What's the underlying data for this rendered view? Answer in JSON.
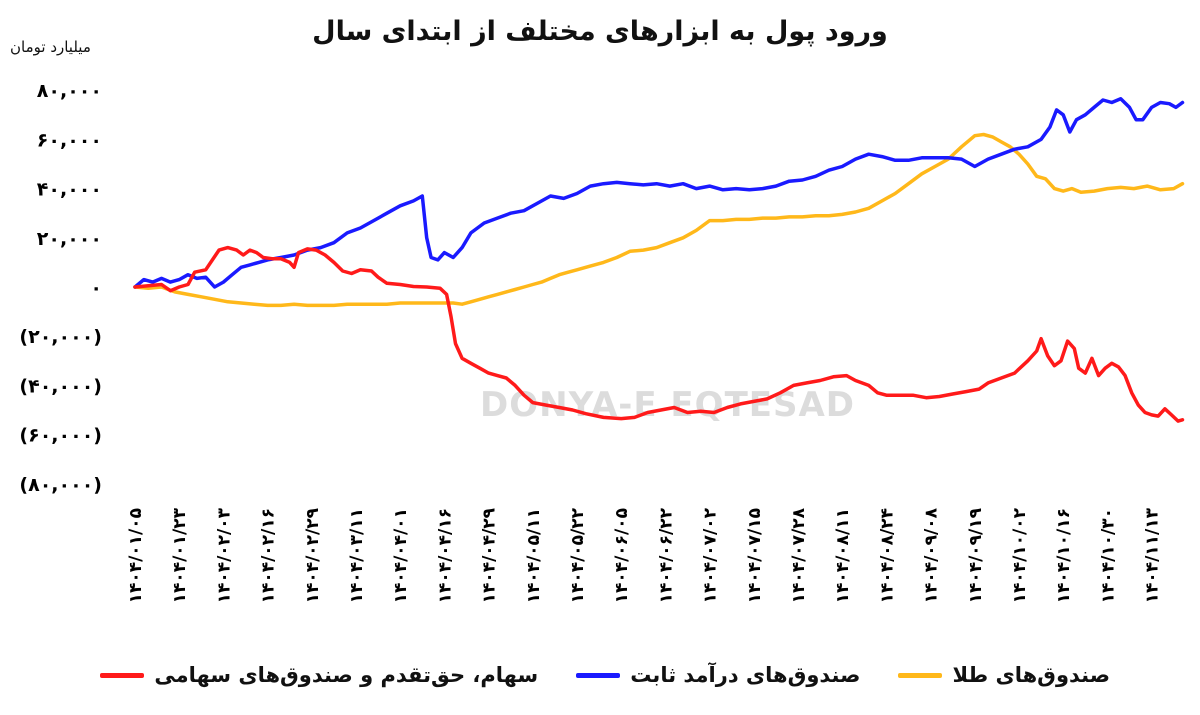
{
  "chart_data": {
    "type": "line",
    "title": "ورود پول به ابزارهای مختلف از ابتدای سال",
    "ylabel": "میلیارد تومان",
    "ylim": [
      -80000,
      80000
    ],
    "y_ticks": [
      {
        "value": 80000,
        "label": "۸۰,۰۰۰"
      },
      {
        "value": 60000,
        "label": "۶۰,۰۰۰"
      },
      {
        "value": 40000,
        "label": "۴۰,۰۰۰"
      },
      {
        "value": 20000,
        "label": "۲۰,۰۰۰"
      },
      {
        "value": 0,
        "label": "۰"
      },
      {
        "value": -20000,
        "label": "(۲۰,۰۰۰)"
      },
      {
        "value": -40000,
        "label": "(۴۰,۰۰۰)"
      },
      {
        "value": -60000,
        "label": "(۶۰,۰۰۰)"
      },
      {
        "value": -80000,
        "label": "(۸۰,۰۰۰)"
      }
    ],
    "categories": [
      "۱۴۰۴/۰۱/۰۵",
      "۱۴۰۴/۰۱/۲۳",
      "۱۴۰۴/۰۲/۰۳",
      "۱۴۰۴/۰۲/۱۶",
      "۱۴۰۴/۰۲/۲۹",
      "۱۴۰۴/۰۳/۱۱",
      "۱۴۰۴/۰۴/۰۱",
      "۱۴۰۴/۰۴/۱۶",
      "۱۴۰۴/۰۴/۲۹",
      "۱۴۰۴/۰۵/۱۱",
      "۱۴۰۴/۰۵/۲۲",
      "۱۴۰۴/۰۶/۰۵",
      "۱۴۰۴/۰۶/۲۲",
      "۱۴۰۴/۰۷/۰۲",
      "۱۴۰۴/۰۷/۱۵",
      "۱۴۰۴/۰۷/۲۸",
      "۱۴۰۴/۰۸/۱۱",
      "۱۴۰۴/۰۸/۲۴",
      "۱۴۰۴/۰۹/۰۸",
      "۱۴۰۴/۰۹/۱۹",
      "۱۴۰۴/۱۰/۰۲",
      "۱۴۰۴/۱۰/۱۶",
      "۱۴۰۴/۱۰/۳۰",
      "۱۴۰۴/۱۱/۱۳"
    ],
    "x_last_index": 23.7,
    "series": [
      {
        "name": "سهام، حق‌تقدم و صندوق‌های سهامی",
        "color": "#ff1a1a",
        "points": [
          [
            0,
            0
          ],
          [
            0.3,
            500
          ],
          [
            0.6,
            1000
          ],
          [
            0.8,
            -1500
          ],
          [
            1.0,
            0
          ],
          [
            1.2,
            1000
          ],
          [
            1.35,
            6000
          ],
          [
            1.6,
            7000
          ],
          [
            1.75,
            11000
          ],
          [
            1.9,
            15000
          ],
          [
            2.1,
            16000
          ],
          [
            2.3,
            15000
          ],
          [
            2.45,
            13000
          ],
          [
            2.6,
            15000
          ],
          [
            2.75,
            14000
          ],
          [
            2.9,
            12000
          ],
          [
            3.1,
            11500
          ],
          [
            3.3,
            11500
          ],
          [
            3.5,
            10000
          ],
          [
            3.6,
            8000
          ],
          [
            3.7,
            14000
          ],
          [
            3.9,
            15500
          ],
          [
            4.1,
            15000
          ],
          [
            4.3,
            13000
          ],
          [
            4.5,
            10000
          ],
          [
            4.7,
            6500
          ],
          [
            4.9,
            5500
          ],
          [
            5.1,
            7000
          ],
          [
            5.35,
            6500
          ],
          [
            5.5,
            4000
          ],
          [
            5.7,
            1500
          ],
          [
            6.0,
            1000
          ],
          [
            6.3,
            200
          ],
          [
            6.6,
            0
          ],
          [
            6.9,
            -500
          ],
          [
            7.05,
            -3000
          ],
          [
            7.15,
            -12000
          ],
          [
            7.25,
            -23000
          ],
          [
            7.4,
            -29000
          ],
          [
            7.6,
            -31000
          ],
          [
            7.8,
            -33000
          ],
          [
            8.0,
            -35000
          ],
          [
            8.2,
            -36000
          ],
          [
            8.4,
            -37000
          ],
          [
            8.6,
            -40000
          ],
          [
            8.8,
            -44000
          ],
          [
            9.0,
            -47000
          ],
          [
            9.3,
            -48000
          ],
          [
            9.6,
            -49000
          ],
          [
            9.9,
            -50000
          ],
          [
            10.2,
            -51500
          ],
          [
            10.6,
            -53000
          ],
          [
            11.0,
            -53500
          ],
          [
            11.3,
            -53000
          ],
          [
            11.6,
            -51000
          ],
          [
            11.9,
            -50000
          ],
          [
            12.2,
            -49000
          ],
          [
            12.5,
            -51000
          ],
          [
            12.8,
            -50500
          ],
          [
            13.1,
            -51000
          ],
          [
            13.4,
            -49000
          ],
          [
            13.7,
            -47500
          ],
          [
            14.0,
            -46500
          ],
          [
            14.3,
            -45500
          ],
          [
            14.6,
            -43000
          ],
          [
            14.9,
            -40000
          ],
          [
            15.2,
            -39000
          ],
          [
            15.5,
            -38000
          ],
          [
            15.8,
            -36500
          ],
          [
            16.1,
            -36000
          ],
          [
            16.3,
            -38000
          ],
          [
            16.6,
            -40000
          ],
          [
            16.8,
            -43000
          ],
          [
            17.0,
            -44000
          ],
          [
            17.3,
            -44000
          ],
          [
            17.6,
            -44000
          ],
          [
            17.9,
            -45000
          ],
          [
            18.2,
            -44500
          ],
          [
            18.5,
            -43500
          ],
          [
            18.8,
            -42500
          ],
          [
            19.1,
            -41500
          ],
          [
            19.3,
            -39000
          ],
          [
            19.6,
            -37000
          ],
          [
            19.9,
            -35000
          ],
          [
            20.2,
            -30000
          ],
          [
            20.4,
            -26000
          ],
          [
            20.5,
            -21000
          ],
          [
            20.65,
            -28000
          ],
          [
            20.8,
            -32000
          ],
          [
            20.95,
            -30000
          ],
          [
            21.1,
            -22000
          ],
          [
            21.25,
            -25000
          ],
          [
            21.35,
            -33000
          ],
          [
            21.5,
            -35000
          ],
          [
            21.65,
            -29000
          ],
          [
            21.8,
            -36000
          ],
          [
            21.95,
            -33000
          ],
          [
            22.1,
            -31000
          ],
          [
            22.25,
            -32500
          ],
          [
            22.4,
            -36000
          ],
          [
            22.55,
            -43000
          ],
          [
            22.7,
            -48000
          ],
          [
            22.85,
            -51000
          ],
          [
            23.0,
            -52000
          ],
          [
            23.15,
            -52500
          ],
          [
            23.3,
            -49500
          ],
          [
            23.45,
            -52000
          ],
          [
            23.6,
            -54500
          ],
          [
            23.7,
            -54000
          ]
        ]
      },
      {
        "name": "صندوق‌های درآمد ثابت",
        "color": "#1a1aff",
        "points": [
          [
            0,
            0
          ],
          [
            0.2,
            3000
          ],
          [
            0.4,
            2000
          ],
          [
            0.6,
            3500
          ],
          [
            0.8,
            2000
          ],
          [
            1.0,
            3000
          ],
          [
            1.2,
            5000
          ],
          [
            1.4,
            3500
          ],
          [
            1.6,
            4000
          ],
          [
            1.8,
            0
          ],
          [
            2.0,
            2000
          ],
          [
            2.2,
            5000
          ],
          [
            2.4,
            8000
          ],
          [
            2.6,
            9000
          ],
          [
            2.8,
            10000
          ],
          [
            3.0,
            11000
          ],
          [
            3.3,
            12000
          ],
          [
            3.6,
            13000
          ],
          [
            3.9,
            15000
          ],
          [
            4.2,
            16000
          ],
          [
            4.5,
            18000
          ],
          [
            4.8,
            22000
          ],
          [
            5.1,
            24000
          ],
          [
            5.4,
            27000
          ],
          [
            5.7,
            30000
          ],
          [
            6.0,
            33000
          ],
          [
            6.3,
            35000
          ],
          [
            6.5,
            37000
          ],
          [
            6.6,
            20000
          ],
          [
            6.7,
            12000
          ],
          [
            6.85,
            11000
          ],
          [
            7.0,
            14000
          ],
          [
            7.2,
            12000
          ],
          [
            7.4,
            16000
          ],
          [
            7.6,
            22000
          ],
          [
            7.9,
            26000
          ],
          [
            8.2,
            28000
          ],
          [
            8.5,
            30000
          ],
          [
            8.8,
            31000
          ],
          [
            9.1,
            34000
          ],
          [
            9.4,
            37000
          ],
          [
            9.7,
            36000
          ],
          [
            10.0,
            38000
          ],
          [
            10.3,
            41000
          ],
          [
            10.6,
            42000
          ],
          [
            10.9,
            42500
          ],
          [
            11.2,
            42000
          ],
          [
            11.5,
            41500
          ],
          [
            11.8,
            42000
          ],
          [
            12.1,
            41000
          ],
          [
            12.4,
            42000
          ],
          [
            12.7,
            40000
          ],
          [
            13.0,
            41000
          ],
          [
            13.3,
            39500
          ],
          [
            13.6,
            40000
          ],
          [
            13.9,
            39500
          ],
          [
            14.2,
            40000
          ],
          [
            14.5,
            41000
          ],
          [
            14.8,
            43000
          ],
          [
            15.1,
            43500
          ],
          [
            15.4,
            45000
          ],
          [
            15.7,
            47500
          ],
          [
            16.0,
            49000
          ],
          [
            16.3,
            52000
          ],
          [
            16.6,
            54000
          ],
          [
            16.9,
            53000
          ],
          [
            17.2,
            51500
          ],
          [
            17.5,
            51500
          ],
          [
            17.8,
            52500
          ],
          [
            18.1,
            52500
          ],
          [
            18.4,
            52500
          ],
          [
            18.7,
            52000
          ],
          [
            19.0,
            49000
          ],
          [
            19.3,
            52000
          ],
          [
            19.6,
            54000
          ],
          [
            19.9,
            56000
          ],
          [
            20.2,
            57000
          ],
          [
            20.5,
            60000
          ],
          [
            20.7,
            65000
          ],
          [
            20.85,
            72000
          ],
          [
            21.0,
            70000
          ],
          [
            21.15,
            63000
          ],
          [
            21.3,
            68000
          ],
          [
            21.5,
            70000
          ],
          [
            21.7,
            73000
          ],
          [
            21.9,
            76000
          ],
          [
            22.1,
            75000
          ],
          [
            22.3,
            76500
          ],
          [
            22.5,
            73000
          ],
          [
            22.65,
            68000
          ],
          [
            22.8,
            68000
          ],
          [
            23.0,
            73000
          ],
          [
            23.2,
            75000
          ],
          [
            23.4,
            74500
          ],
          [
            23.55,
            73000
          ],
          [
            23.7,
            75000
          ]
        ]
      },
      {
        "name": "صندوق‌های طلا",
        "color": "#ffb81a",
        "points": [
          [
            0,
            0
          ],
          [
            0.3,
            -500
          ],
          [
            0.6,
            0
          ],
          [
            0.9,
            -2000
          ],
          [
            1.2,
            -3000
          ],
          [
            1.5,
            -4000
          ],
          [
            1.8,
            -5000
          ],
          [
            2.1,
            -6000
          ],
          [
            2.4,
            -6500
          ],
          [
            2.7,
            -7000
          ],
          [
            3.0,
            -7500
          ],
          [
            3.3,
            -7500
          ],
          [
            3.6,
            -7000
          ],
          [
            3.9,
            -7500
          ],
          [
            4.2,
            -7500
          ],
          [
            4.5,
            -7500
          ],
          [
            4.8,
            -7000
          ],
          [
            5.1,
            -7000
          ],
          [
            5.4,
            -7000
          ],
          [
            5.7,
            -7000
          ],
          [
            6.0,
            -6500
          ],
          [
            6.3,
            -6500
          ],
          [
            6.6,
            -6500
          ],
          [
            6.9,
            -6500
          ],
          [
            7.2,
            -6500
          ],
          [
            7.4,
            -7000
          ],
          [
            7.6,
            -6000
          ],
          [
            7.8,
            -5000
          ],
          [
            8.0,
            -4000
          ],
          [
            8.2,
            -3000
          ],
          [
            8.4,
            -2000
          ],
          [
            8.6,
            -1000
          ],
          [
            8.8,
            0
          ],
          [
            9.0,
            1000
          ],
          [
            9.2,
            2000
          ],
          [
            9.4,
            3500
          ],
          [
            9.6,
            5000
          ],
          [
            9.8,
            6000
          ],
          [
            10.0,
            7000
          ],
          [
            10.3,
            8500
          ],
          [
            10.6,
            10000
          ],
          [
            10.9,
            12000
          ],
          [
            11.2,
            14500
          ],
          [
            11.5,
            15000
          ],
          [
            11.8,
            16000
          ],
          [
            12.1,
            18000
          ],
          [
            12.4,
            20000
          ],
          [
            12.7,
            23000
          ],
          [
            13.0,
            27000
          ],
          [
            13.3,
            27000
          ],
          [
            13.6,
            27500
          ],
          [
            13.9,
            27500
          ],
          [
            14.2,
            28000
          ],
          [
            14.5,
            28000
          ],
          [
            14.8,
            28500
          ],
          [
            15.1,
            28500
          ],
          [
            15.4,
            29000
          ],
          [
            15.7,
            29000
          ],
          [
            16.0,
            29500
          ],
          [
            16.3,
            30500
          ],
          [
            16.6,
            32000
          ],
          [
            16.9,
            35000
          ],
          [
            17.2,
            38000
          ],
          [
            17.5,
            42000
          ],
          [
            17.8,
            46000
          ],
          [
            18.1,
            49000
          ],
          [
            18.4,
            52000
          ],
          [
            18.7,
            57000
          ],
          [
            19.0,
            61500
          ],
          [
            19.2,
            62000
          ],
          [
            19.4,
            61000
          ],
          [
            19.6,
            59000
          ],
          [
            19.8,
            57000
          ],
          [
            20.0,
            54000
          ],
          [
            20.2,
            50000
          ],
          [
            20.4,
            45000
          ],
          [
            20.6,
            44000
          ],
          [
            20.8,
            40000
          ],
          [
            21.0,
            39000
          ],
          [
            21.2,
            40000
          ],
          [
            21.4,
            38500
          ],
          [
            21.7,
            39000
          ],
          [
            22.0,
            40000
          ],
          [
            22.3,
            40500
          ],
          [
            22.6,
            40000
          ],
          [
            22.9,
            41000
          ],
          [
            23.2,
            39500
          ],
          [
            23.5,
            40000
          ],
          [
            23.7,
            42000
          ]
        ]
      }
    ],
    "legend_position": "bottom",
    "grid": false
  },
  "watermark": "DONYA-E EQTESAD"
}
